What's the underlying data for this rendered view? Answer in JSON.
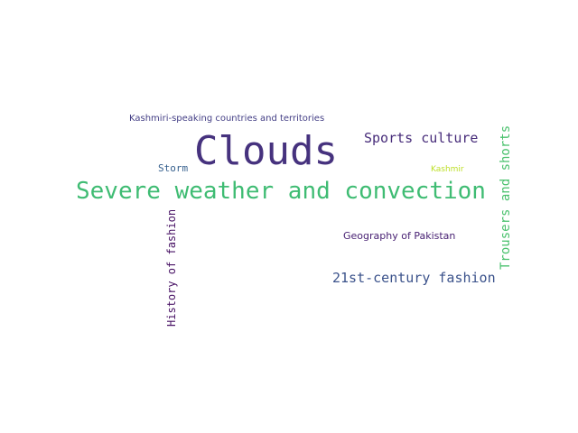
{
  "words": {
    "clouds": {
      "text": "Clouds",
      "color": "#46327e"
    },
    "severe": {
      "text": "Severe weather and convection",
      "color": "#3fbc73"
    },
    "kashmiri": {
      "text": "Kashmiri-speaking countries and territories",
      "color": "#433e85"
    },
    "sports": {
      "text": "Sports culture",
      "color": "#472c7a"
    },
    "storm": {
      "text": "Storm",
      "color": "#355f8d"
    },
    "kashmir": {
      "text": "Kashmir",
      "color": "#bddf26"
    },
    "geography": {
      "text": "Geography of Pakistan",
      "color": "#482173"
    },
    "twentyfirst": {
      "text": "21st-century fashion",
      "color": "#3b528b"
    },
    "history": {
      "text": "History of fashion",
      "color": "#471164"
    },
    "trousers": {
      "text": "Trousers and shorts",
      "color": "#4ac16d"
    }
  }
}
